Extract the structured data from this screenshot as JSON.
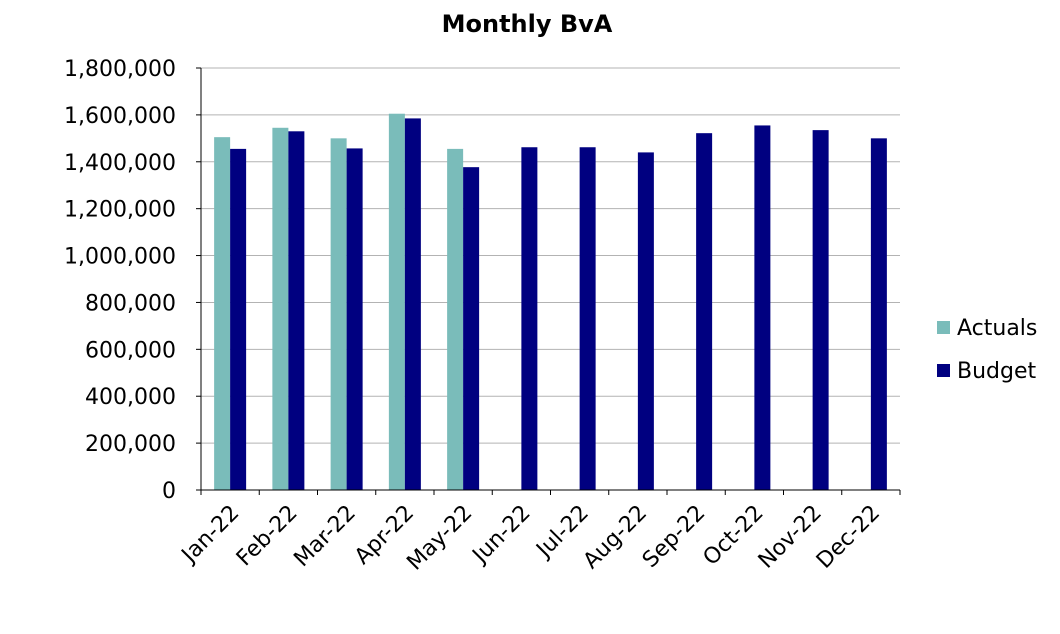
{
  "chart_data": {
    "type": "bar",
    "title": "Monthly BvA",
    "xlabel": "",
    "ylabel": "",
    "ylim": [
      0,
      1800000
    ],
    "yticks": [
      0,
      200000,
      400000,
      600000,
      800000,
      1000000,
      1200000,
      1400000,
      1600000,
      1800000
    ],
    "ytick_labels": [
      "0",
      "200,000",
      "400,000",
      "600,000",
      "800,000",
      "1,000,000",
      "1,200,000",
      "1,400,000",
      "1,600,000",
      "1,800,000"
    ],
    "grid": true,
    "legend_position": "right",
    "categories": [
      "Jan-22",
      "Feb-22",
      "Mar-22",
      "Apr-22",
      "May-22",
      "Jun-22",
      "Jul-22",
      "Aug-22",
      "Sep-22",
      "Oct-22",
      "Nov-22",
      "Dec-22"
    ],
    "series": [
      {
        "name": "Actuals",
        "color": "#7ABCBA",
        "values": [
          1505000,
          1545000,
          1500000,
          1605000,
          1455000,
          null,
          null,
          null,
          null,
          null,
          null,
          null
        ]
      },
      {
        "name": "Budget",
        "color": "#000080",
        "values": [
          1455000,
          1530000,
          1457000,
          1585000,
          1377000,
          1462000,
          1462000,
          1440000,
          1522000,
          1555000,
          1535000,
          1500000
        ]
      }
    ]
  }
}
